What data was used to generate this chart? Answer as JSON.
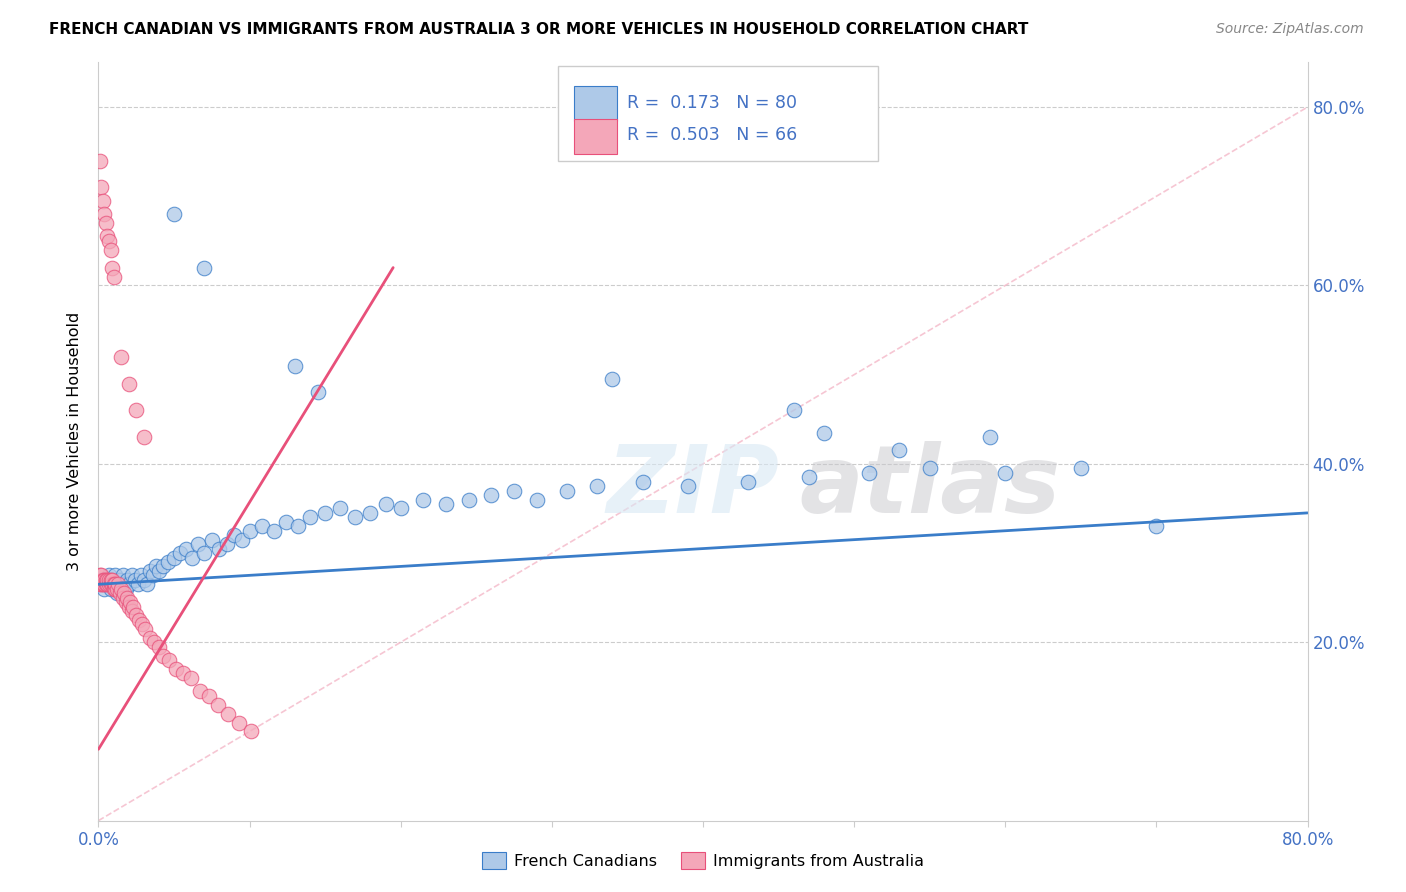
{
  "title": "FRENCH CANADIAN VS IMMIGRANTS FROM AUSTRALIA 3 OR MORE VEHICLES IN HOUSEHOLD CORRELATION CHART",
  "source": "Source: ZipAtlas.com",
  "ylabel": "3 or more Vehicles in Household",
  "legend_label1": "French Canadians",
  "legend_label2": "Immigrants from Australia",
  "blue_color": "#aec9e8",
  "pink_color": "#f4a7b9",
  "blue_line_color": "#3a7dc9",
  "pink_line_color": "#e8507a",
  "diag_color": "#f4b8c8",
  "xlim": [
    0.0,
    0.8
  ],
  "ylim": [
    0.0,
    0.85
  ],
  "blue_trend": [
    0.0,
    0.8,
    0.265,
    0.345
  ],
  "pink_trend": [
    0.0,
    0.195,
    0.08,
    0.62
  ],
  "blue_x": [
    0.002,
    0.003,
    0.004,
    0.005,
    0.006,
    0.007,
    0.008,
    0.009,
    0.01,
    0.011,
    0.012,
    0.013,
    0.014,
    0.015,
    0.016,
    0.017,
    0.018,
    0.019,
    0.02,
    0.022,
    0.024,
    0.026,
    0.028,
    0.03,
    0.032,
    0.034,
    0.036,
    0.038,
    0.04,
    0.043,
    0.046,
    0.05,
    0.054,
    0.058,
    0.062,
    0.066,
    0.07,
    0.075,
    0.08,
    0.085,
    0.09,
    0.095,
    0.1,
    0.108,
    0.116,
    0.124,
    0.132,
    0.14,
    0.15,
    0.16,
    0.17,
    0.18,
    0.19,
    0.2,
    0.215,
    0.23,
    0.245,
    0.26,
    0.275,
    0.29,
    0.31,
    0.33,
    0.36,
    0.39,
    0.43,
    0.47,
    0.51,
    0.55,
    0.6,
    0.65,
    0.7,
    0.13,
    0.145,
    0.34,
    0.46,
    0.48,
    0.53,
    0.59,
    0.05,
    0.07
  ],
  "blue_y": [
    0.27,
    0.265,
    0.26,
    0.27,
    0.265,
    0.275,
    0.26,
    0.27,
    0.265,
    0.275,
    0.255,
    0.265,
    0.27,
    0.26,
    0.275,
    0.265,
    0.26,
    0.27,
    0.265,
    0.275,
    0.27,
    0.265,
    0.275,
    0.27,
    0.265,
    0.28,
    0.275,
    0.285,
    0.28,
    0.285,
    0.29,
    0.295,
    0.3,
    0.305,
    0.295,
    0.31,
    0.3,
    0.315,
    0.305,
    0.31,
    0.32,
    0.315,
    0.325,
    0.33,
    0.325,
    0.335,
    0.33,
    0.34,
    0.345,
    0.35,
    0.34,
    0.345,
    0.355,
    0.35,
    0.36,
    0.355,
    0.36,
    0.365,
    0.37,
    0.36,
    0.37,
    0.375,
    0.38,
    0.375,
    0.38,
    0.385,
    0.39,
    0.395,
    0.39,
    0.395,
    0.33,
    0.51,
    0.48,
    0.495,
    0.46,
    0.435,
    0.415,
    0.43,
    0.68,
    0.62
  ],
  "pink_x": [
    0.001,
    0.001,
    0.002,
    0.002,
    0.003,
    0.003,
    0.004,
    0.004,
    0.005,
    0.005,
    0.006,
    0.006,
    0.007,
    0.007,
    0.008,
    0.008,
    0.009,
    0.009,
    0.01,
    0.01,
    0.011,
    0.011,
    0.012,
    0.013,
    0.014,
    0.015,
    0.016,
    0.017,
    0.018,
    0.019,
    0.02,
    0.021,
    0.022,
    0.023,
    0.025,
    0.027,
    0.029,
    0.031,
    0.034,
    0.037,
    0.04,
    0.043,
    0.047,
    0.051,
    0.056,
    0.061,
    0.067,
    0.073,
    0.079,
    0.086,
    0.093,
    0.101,
    0.001,
    0.002,
    0.003,
    0.004,
    0.005,
    0.006,
    0.007,
    0.008,
    0.009,
    0.01,
    0.015,
    0.02,
    0.025,
    0.03
  ],
  "pink_y": [
    0.265,
    0.275,
    0.265,
    0.275,
    0.265,
    0.27,
    0.265,
    0.27,
    0.265,
    0.27,
    0.265,
    0.27,
    0.265,
    0.27,
    0.265,
    0.27,
    0.265,
    0.27,
    0.26,
    0.265,
    0.26,
    0.265,
    0.26,
    0.265,
    0.255,
    0.26,
    0.25,
    0.255,
    0.245,
    0.25,
    0.24,
    0.245,
    0.235,
    0.24,
    0.23,
    0.225,
    0.22,
    0.215,
    0.205,
    0.2,
    0.195,
    0.185,
    0.18,
    0.17,
    0.165,
    0.16,
    0.145,
    0.14,
    0.13,
    0.12,
    0.11,
    0.1,
    0.74,
    0.71,
    0.695,
    0.68,
    0.67,
    0.655,
    0.65,
    0.64,
    0.62,
    0.61,
    0.52,
    0.49,
    0.46,
    0.43
  ]
}
